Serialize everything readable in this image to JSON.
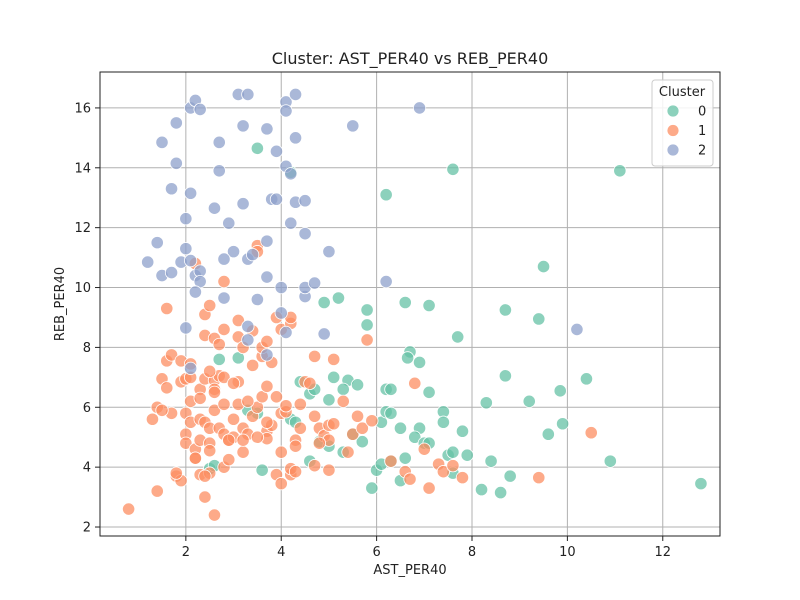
{
  "chart_data": {
    "type": "scatter",
    "title": "Cluster: AST_PER40 vs REB_PER40",
    "xlabel": "AST_PER40",
    "ylabel": "REB_PER40",
    "xlim": [
      0.2,
      13.2
    ],
    "ylim": [
      1.7,
      17.2
    ],
    "xticks": [
      2,
      4,
      6,
      8,
      10,
      12
    ],
    "yticks": [
      2,
      4,
      6,
      8,
      10,
      12,
      14,
      16
    ],
    "grid": true,
    "legend": {
      "title": "Cluster",
      "placement": "top-right"
    },
    "series": [
      {
        "name": "0",
        "color": "#66c2a5",
        "points": [
          [
            3.5,
            14.65
          ],
          [
            4.2,
            13.85
          ],
          [
            6.2,
            13.1
          ],
          [
            7.6,
            13.95
          ],
          [
            11.1,
            13.9
          ],
          [
            9.5,
            10.7
          ],
          [
            4.9,
            9.5
          ],
          [
            5.2,
            9.65
          ],
          [
            5.8,
            9.25
          ],
          [
            5.8,
            8.75
          ],
          [
            6.6,
            9.5
          ],
          [
            7.1,
            9.4
          ],
          [
            8.7,
            9.25
          ],
          [
            9.4,
            8.95
          ],
          [
            7.7,
            8.35
          ],
          [
            6.7,
            7.85
          ],
          [
            6.65,
            7.65
          ],
          [
            6.9,
            7.5
          ],
          [
            8.7,
            7.05
          ],
          [
            10.4,
            6.95
          ],
          [
            9.85,
            6.55
          ],
          [
            9.2,
            6.2
          ],
          [
            5.1,
            7.0
          ],
          [
            5.4,
            6.9
          ],
          [
            5.3,
            6.6
          ],
          [
            5.6,
            6.75
          ],
          [
            6.2,
            6.6
          ],
          [
            6.3,
            6.6
          ],
          [
            7.1,
            6.5
          ],
          [
            8.3,
            6.15
          ],
          [
            3.1,
            7.65
          ],
          [
            2.7,
            7.6
          ],
          [
            4.6,
            6.45
          ],
          [
            4.7,
            6.6
          ],
          [
            5.0,
            6.25
          ],
          [
            3.5,
            5.8
          ],
          [
            4.2,
            5.6
          ],
          [
            4.3,
            5.5
          ],
          [
            6.1,
            5.5
          ],
          [
            6.2,
            5.85
          ],
          [
            6.3,
            5.8
          ],
          [
            6.5,
            5.3
          ],
          [
            6.9,
            5.3
          ],
          [
            7.4,
            5.85
          ],
          [
            7.4,
            5.5
          ],
          [
            7.8,
            5.2
          ],
          [
            9.6,
            5.1
          ],
          [
            9.9,
            5.45
          ],
          [
            5.3,
            4.5
          ],
          [
            5.7,
            4.85
          ],
          [
            6.0,
            3.9
          ],
          [
            6.1,
            4.1
          ],
          [
            6.3,
            4.2
          ],
          [
            6.6,
            4.3
          ],
          [
            6.8,
            5.0
          ],
          [
            7.0,
            4.8
          ],
          [
            7.1,
            4.8
          ],
          [
            7.5,
            4.4
          ],
          [
            7.6,
            4.5
          ],
          [
            7.6,
            3.8
          ],
          [
            7.9,
            4.4
          ],
          [
            8.4,
            4.2
          ],
          [
            8.8,
            3.7
          ],
          [
            8.2,
            3.25
          ],
          [
            8.6,
            3.15
          ],
          [
            6.5,
            3.55
          ],
          [
            5.9,
            3.3
          ],
          [
            10.9,
            4.2
          ],
          [
            12.8,
            3.45
          ],
          [
            4.6,
            4.2
          ],
          [
            4.8,
            4.85
          ],
          [
            5.0,
            4.7
          ],
          [
            3.6,
            3.9
          ],
          [
            2.5,
            3.95
          ],
          [
            2.6,
            4.05
          ],
          [
            4.4,
            6.85
          ],
          [
            5.5,
            5.1
          ],
          [
            3.3,
            5.9
          ]
        ]
      },
      {
        "name": "1",
        "color": "#fc8d62",
        "points": [
          [
            0.8,
            2.6
          ],
          [
            1.4,
            3.2
          ],
          [
            1.8,
            3.7
          ],
          [
            1.9,
            3.55
          ],
          [
            1.8,
            3.8
          ],
          [
            2.3,
            3.75
          ],
          [
            2.4,
            3.0
          ],
          [
            2.5,
            3.8
          ],
          [
            2.6,
            2.4
          ],
          [
            2.8,
            4.0
          ],
          [
            2.9,
            4.25
          ],
          [
            3.9,
            3.75
          ],
          [
            4.0,
            3.45
          ],
          [
            4.2,
            3.75
          ],
          [
            4.2,
            3.95
          ],
          [
            4.3,
            3.85
          ],
          [
            4.7,
            4.05
          ],
          [
            5.0,
            3.9
          ],
          [
            1.3,
            5.6
          ],
          [
            1.4,
            6.0
          ],
          [
            1.5,
            6.95
          ],
          [
            1.6,
            7.55
          ],
          [
            1.7,
            7.75
          ],
          [
            1.6,
            6.65
          ],
          [
            1.7,
            5.8
          ],
          [
            1.5,
            5.9
          ],
          [
            1.9,
            6.85
          ],
          [
            1.9,
            7.55
          ],
          [
            2.0,
            6.95
          ],
          [
            2.0,
            5.8
          ],
          [
            2.0,
            5.1
          ],
          [
            2.0,
            4.8
          ],
          [
            2.1,
            7.0
          ],
          [
            2.1,
            6.2
          ],
          [
            2.1,
            5.5
          ],
          [
            2.2,
            4.6
          ],
          [
            2.2,
            4.3
          ],
          [
            2.3,
            4.9
          ],
          [
            2.3,
            5.6
          ],
          [
            2.3,
            6.6
          ],
          [
            2.4,
            6.95
          ],
          [
            2.4,
            5.5
          ],
          [
            2.5,
            5.3
          ],
          [
            2.5,
            4.8
          ],
          [
            2.5,
            4.55
          ],
          [
            2.6,
            5.9
          ],
          [
            2.6,
            6.9
          ],
          [
            2.7,
            7.05
          ],
          [
            2.7,
            5.3
          ],
          [
            2.8,
            6.1
          ],
          [
            2.8,
            5.1
          ],
          [
            2.9,
            4.9
          ],
          [
            3.0,
            5.0
          ],
          [
            3.0,
            5.6
          ],
          [
            3.1,
            6.1
          ],
          [
            3.1,
            6.85
          ],
          [
            3.2,
            5.3
          ],
          [
            3.2,
            4.5
          ],
          [
            3.3,
            5.1
          ],
          [
            3.4,
            5.7
          ],
          [
            3.5,
            6.0
          ],
          [
            3.6,
            6.35
          ],
          [
            3.7,
            6.7
          ],
          [
            3.7,
            5.2
          ],
          [
            3.7,
            4.95
          ],
          [
            3.8,
            5.4
          ],
          [
            3.9,
            6.35
          ],
          [
            4.0,
            5.8
          ],
          [
            4.1,
            5.85
          ],
          [
            4.3,
            4.9
          ],
          [
            4.4,
            5.3
          ],
          [
            4.5,
            6.85
          ],
          [
            4.6,
            6.8
          ],
          [
            4.7,
            5.7
          ],
          [
            4.8,
            5.3
          ],
          [
            4.9,
            5.05
          ],
          [
            5.0,
            5.4
          ],
          [
            5.0,
            4.9
          ],
          [
            5.1,
            5.45
          ],
          [
            5.3,
            6.2
          ],
          [
            5.5,
            5.1
          ],
          [
            5.6,
            5.7
          ],
          [
            5.7,
            5.3
          ],
          [
            5.9,
            5.55
          ],
          [
            6.3,
            4.2
          ],
          [
            6.6,
            3.85
          ],
          [
            6.7,
            3.6
          ],
          [
            6.8,
            6.8
          ],
          [
            7.0,
            4.6
          ],
          [
            7.1,
            3.3
          ],
          [
            7.3,
            4.1
          ],
          [
            7.4,
            3.85
          ],
          [
            7.6,
            4.05
          ],
          [
            7.8,
            3.65
          ],
          [
            9.4,
            3.65
          ],
          [
            10.5,
            5.15
          ],
          [
            1.6,
            9.3
          ],
          [
            2.2,
            10.8
          ],
          [
            2.4,
            8.4
          ],
          [
            2.4,
            9.1
          ],
          [
            2.5,
            9.4
          ],
          [
            2.6,
            8.3
          ],
          [
            2.7,
            8.1
          ],
          [
            2.8,
            8.6
          ],
          [
            2.8,
            10.2
          ],
          [
            3.1,
            8.9
          ],
          [
            3.1,
            8.35
          ],
          [
            3.2,
            8.0
          ],
          [
            3.4,
            8.55
          ],
          [
            3.5,
            11.4
          ],
          [
            3.5,
            11.2
          ],
          [
            3.6,
            7.7
          ],
          [
            3.6,
            8.0
          ],
          [
            3.8,
            7.5
          ],
          [
            3.7,
            8.2
          ],
          [
            3.9,
            9.0
          ],
          [
            4.0,
            8.6
          ],
          [
            4.2,
            8.8
          ],
          [
            4.2,
            9.0
          ],
          [
            4.7,
            7.7
          ],
          [
            5.1,
            7.6
          ],
          [
            5.8,
            8.25
          ],
          [
            2.1,
            7.45
          ],
          [
            2.3,
            6.3
          ],
          [
            2.5,
            7.2
          ],
          [
            2.6,
            6.6
          ],
          [
            2.8,
            7.0
          ],
          [
            3.0,
            6.8
          ],
          [
            3.3,
            6.2
          ],
          [
            3.4,
            7.4
          ],
          [
            3.5,
            5.0
          ],
          [
            3.7,
            5.5
          ],
          [
            4.1,
            6.05
          ],
          [
            4.3,
            4.7
          ],
          [
            4.4,
            6.1
          ],
          [
            4.8,
            4.8
          ],
          [
            5.4,
            4.5
          ],
          [
            2.2,
            4.3
          ],
          [
            2.9,
            4.9
          ],
          [
            2.4,
            3.7
          ],
          [
            2.6,
            6.5
          ],
          [
            3.2,
            4.9
          ],
          [
            4.0,
            4.5
          ]
        ]
      },
      {
        "name": "2",
        "color": "#8da0cb",
        "points": [
          [
            1.5,
            14.85
          ],
          [
            1.7,
            13.3
          ],
          [
            1.8,
            14.15
          ],
          [
            1.8,
            15.5
          ],
          [
            2.1,
            16.0
          ],
          [
            2.2,
            16.25
          ],
          [
            2.3,
            15.95
          ],
          [
            3.1,
            16.45
          ],
          [
            3.3,
            16.45
          ],
          [
            4.1,
            16.2
          ],
          [
            4.3,
            16.45
          ],
          [
            4.1,
            15.9
          ],
          [
            2.1,
            13.15
          ],
          [
            2.0,
            12.3
          ],
          [
            2.7,
            14.85
          ],
          [
            2.7,
            13.9
          ],
          [
            3.2,
            15.4
          ],
          [
            3.7,
            15.3
          ],
          [
            3.9,
            14.55
          ],
          [
            4.3,
            15.0
          ],
          [
            4.1,
            14.05
          ],
          [
            4.2,
            13.8
          ],
          [
            5.5,
            15.4
          ],
          [
            6.9,
            16.0
          ],
          [
            1.4,
            11.5
          ],
          [
            1.2,
            10.85
          ],
          [
            1.5,
            10.4
          ],
          [
            1.7,
            10.5
          ],
          [
            1.9,
            10.85
          ],
          [
            2.0,
            11.3
          ],
          [
            2.1,
            10.9
          ],
          [
            2.2,
            10.4
          ],
          [
            2.3,
            10.55
          ],
          [
            2.3,
            10.2
          ],
          [
            2.6,
            12.65
          ],
          [
            2.9,
            12.15
          ],
          [
            3.0,
            11.2
          ],
          [
            3.2,
            12.8
          ],
          [
            3.3,
            10.95
          ],
          [
            3.4,
            11.1
          ],
          [
            3.7,
            11.55
          ],
          [
            3.8,
            12.95
          ],
          [
            3.9,
            12.95
          ],
          [
            4.2,
            12.15
          ],
          [
            4.3,
            12.85
          ],
          [
            4.5,
            12.9
          ],
          [
            4.5,
            11.8
          ],
          [
            5.0,
            11.2
          ],
          [
            3.7,
            10.35
          ],
          [
            4.0,
            10.0
          ],
          [
            2.2,
            9.85
          ],
          [
            2.0,
            8.65
          ],
          [
            2.8,
            10.95
          ],
          [
            2.8,
            9.65
          ],
          [
            3.3,
            8.7
          ],
          [
            3.5,
            9.6
          ],
          [
            4.0,
            9.15
          ],
          [
            4.1,
            8.5
          ],
          [
            4.5,
            9.7
          ],
          [
            4.5,
            10.0
          ],
          [
            4.7,
            10.15
          ],
          [
            4.9,
            8.45
          ],
          [
            6.2,
            10.2
          ],
          [
            10.2,
            8.6
          ],
          [
            3.7,
            7.75
          ],
          [
            3.3,
            8.25
          ],
          [
            2.1,
            7.3
          ]
        ]
      }
    ]
  }
}
